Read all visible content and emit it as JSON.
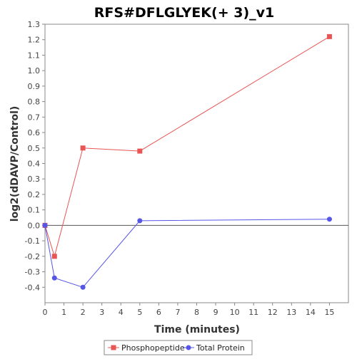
{
  "chart_data": {
    "type": "line",
    "title": "RFS#DFLGLYEK(+ 3)_v1",
    "xlabel": "Time (minutes)",
    "ylabel": "log2(dDAVP/Control)",
    "xlim": [
      0,
      16
    ],
    "ylim": [
      -0.5,
      1.3
    ],
    "x_ticks": [
      0,
      1,
      2,
      3,
      4,
      5,
      6,
      7,
      8,
      9,
      10,
      11,
      12,
      13,
      14,
      15
    ],
    "y_ticks": [
      -0.4,
      -0.3,
      -0.2,
      -0.1,
      0.0,
      0.1,
      0.2,
      0.3,
      0.4,
      0.5,
      0.6,
      0.7,
      0.8,
      0.9,
      1.0,
      1.1,
      1.2,
      1.3
    ],
    "grid": false,
    "zero_line": true,
    "legend_position": "bottom",
    "series": [
      {
        "name": "Phosphopeptide",
        "color": "#e85555",
        "marker": "square",
        "x": [
          0,
          0.5,
          2,
          5,
          15
        ],
        "y": [
          0.0,
          -0.2,
          0.5,
          0.48,
          1.22
        ]
      },
      {
        "name": "Total Protein",
        "color": "#5555e8",
        "marker": "circle",
        "x": [
          0,
          0.5,
          2,
          5,
          15
        ],
        "y": [
          0.0,
          -0.34,
          -0.4,
          0.03,
          0.04
        ]
      }
    ]
  }
}
